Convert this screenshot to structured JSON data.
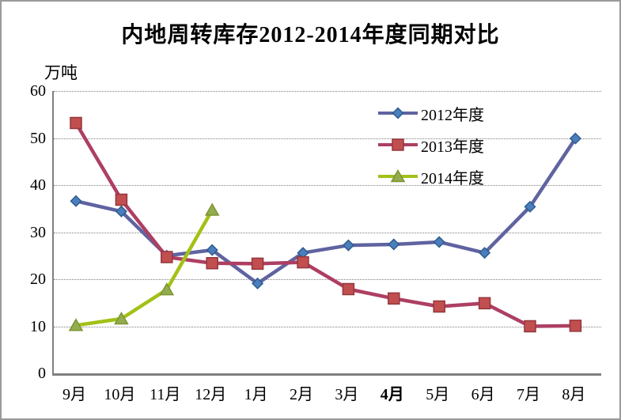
{
  "title": "内地周转库存2012-2014年度同期对比",
  "y_unit_label": "万吨",
  "legend": {
    "items": [
      "2012年度",
      "2013年度",
      "2014年度"
    ]
  },
  "chart_data": {
    "type": "line",
    "title": "内地周转库存2012-2014年度同期对比",
    "ylabel": "万吨",
    "categories": [
      "9月",
      "10月",
      "11月",
      "12月",
      "1月",
      "2月",
      "3月",
      "4月",
      "5月",
      "6月",
      "7月",
      "8月"
    ],
    "bold_categories": [
      "4月"
    ],
    "y_ticks": [
      0,
      10,
      20,
      30,
      40,
      50,
      60
    ],
    "ylim": [
      0,
      60
    ],
    "grid": "horizontal-dotted",
    "legend_position": "upper-center-right",
    "series": [
      {
        "name": "2012年度",
        "marker": "diamond",
        "line_color": "#5f63a0",
        "marker_color": "#4a7ebd",
        "marker_stroke": "#2e5d8e",
        "values": [
          36.6,
          34.4,
          25.0,
          26.2,
          19.1,
          25.6,
          27.2,
          27.4,
          27.9,
          25.6,
          35.4,
          49.9
        ]
      },
      {
        "name": "2013年度",
        "marker": "square",
        "line_color": "#ad3f62",
        "marker_color": "#c24f4f",
        "marker_stroke": "#94363e",
        "values": [
          53.2,
          36.9,
          24.7,
          23.4,
          23.3,
          23.6,
          17.9,
          15.9,
          14.2,
          14.9,
          10.0,
          10.1
        ]
      },
      {
        "name": "2014年度",
        "marker": "triangle",
        "line_color": "#a2c117",
        "marker_color": "#93ac4f",
        "marker_stroke": "#7d9431",
        "values": [
          10.2,
          11.6,
          17.8,
          34.7
        ]
      }
    ]
  }
}
